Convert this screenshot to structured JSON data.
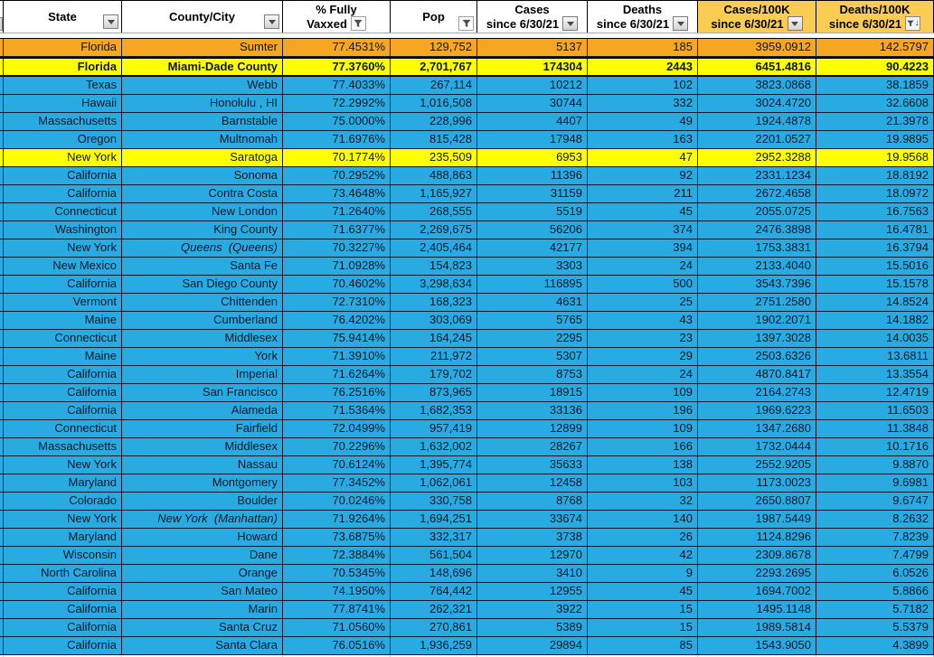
{
  "colors": {
    "row_blue": "#29ABE2",
    "row_orange": "#F6A623",
    "row_yellow": "#FFFF00",
    "header_gold_bg": "#FBCC52",
    "gridline": "#111B33",
    "header_bg": "#FFFFFF"
  },
  "header": {
    "columns": [
      {
        "name": "state",
        "lines": [
          "State"
        ],
        "icon": "dropdown",
        "bg": "white"
      },
      {
        "name": "county",
        "lines": [
          "County/City"
        ],
        "icon": "dropdown",
        "bg": "white"
      },
      {
        "name": "vaxxed",
        "lines": [
          "% Fully",
          "Vaxxed"
        ],
        "icon": "funnel",
        "bg": "white"
      },
      {
        "name": "pop",
        "lines": [
          "Pop"
        ],
        "icon": "funnel",
        "bg": "white"
      },
      {
        "name": "cases",
        "lines": [
          "Cases",
          "since 6/30/21"
        ],
        "icon": "dropdown",
        "bg": "white"
      },
      {
        "name": "deaths",
        "lines": [
          "Deaths",
          "since 6/30/21"
        ],
        "icon": "dropdown",
        "bg": "white"
      },
      {
        "name": "cases_100k",
        "lines": [
          "Cases/100K",
          "since 6/30/21"
        ],
        "icon": "dropdown",
        "bg": "gold"
      },
      {
        "name": "deaths_100k",
        "lines": [
          "Deaths/100K",
          "since 6/30/21"
        ],
        "icon": "funnel_sort_desc",
        "bg": "gold"
      }
    ]
  },
  "rows": [
    {
      "state": "Florida",
      "county": "Sumter",
      "vaxxed": "77.4531%",
      "pop": "129,752",
      "cases": "5137",
      "deaths": "185",
      "cases_100k": "3959.0912",
      "deaths_100k": "142.5797",
      "highlight": "orange"
    },
    {
      "state": "Florida",
      "county": "Miami-Dade County",
      "vaxxed": "77.3760%",
      "pop": "2,701,767",
      "cases": "174304",
      "deaths": "2443",
      "cases_100k": "6451.4816",
      "deaths_100k": "90.4223",
      "highlight": "yellow",
      "bold": true,
      "thick_border": true
    },
    {
      "state": "Texas",
      "county": "Webb",
      "vaxxed": "77.4033%",
      "pop": "267,114",
      "cases": "10212",
      "deaths": "102",
      "cases_100k": "3823.0868",
      "deaths_100k": "38.1859",
      "highlight": "blue"
    },
    {
      "state": "Hawaii",
      "county": "Honolulu , HI",
      "vaxxed": "72.2992%",
      "pop": "1,016,508",
      "cases": "30744",
      "deaths": "332",
      "cases_100k": "3024.4720",
      "deaths_100k": "32.6608",
      "highlight": "blue"
    },
    {
      "state": "Massachusetts",
      "county": "Barnstable",
      "vaxxed": "75.0000%",
      "pop": "228,996",
      "cases": "4407",
      "deaths": "49",
      "cases_100k": "1924.4878",
      "deaths_100k": "21.3978",
      "highlight": "blue"
    },
    {
      "state": "Oregon",
      "county": "Multnomah",
      "vaxxed": "71.6976%",
      "pop": "815,428",
      "cases": "17948",
      "deaths": "163",
      "cases_100k": "2201.0527",
      "deaths_100k": "19.9895",
      "highlight": "blue"
    },
    {
      "state": "New York",
      "county": "Saratoga",
      "vaxxed": "70.1774%",
      "pop": "235,509",
      "cases": "6953",
      "deaths": "47",
      "cases_100k": "2952.3288",
      "deaths_100k": "19.9568",
      "highlight": "yellow"
    },
    {
      "state": "California",
      "county": "Sonoma",
      "vaxxed": "70.2952%",
      "pop": "488,863",
      "cases": "11396",
      "deaths": "92",
      "cases_100k": "2331.1234",
      "deaths_100k": "18.8192",
      "highlight": "blue"
    },
    {
      "state": "California",
      "county": "Contra Costa",
      "vaxxed": "73.4648%",
      "pop": "1,165,927",
      "cases": "31159",
      "deaths": "211",
      "cases_100k": "2672.4658",
      "deaths_100k": "18.0972",
      "highlight": "blue"
    },
    {
      "state": "Connecticut",
      "county": "New London",
      "vaxxed": "71.2640%",
      "pop": "268,555",
      "cases": "5519",
      "deaths": "45",
      "cases_100k": "2055.0725",
      "deaths_100k": "16.7563",
      "highlight": "blue"
    },
    {
      "state": "Washington",
      "county": "King County",
      "vaxxed": "71.6377%",
      "pop": "2,269,675",
      "cases": "56206",
      "deaths": "374",
      "cases_100k": "2476.3898",
      "deaths_100k": "16.4781",
      "highlight": "blue"
    },
    {
      "state": "New York",
      "county": "Queens  (Queens)",
      "vaxxed": "70.3227%",
      "pop": "2,405,464",
      "cases": "42177",
      "deaths": "394",
      "cases_100k": "1753.3831",
      "deaths_100k": "16.3794",
      "highlight": "blue",
      "county_italic": true
    },
    {
      "state": "New Mexico",
      "county": "Santa Fe",
      "vaxxed": "71.0928%",
      "pop": "154,823",
      "cases": "3303",
      "deaths": "24",
      "cases_100k": "2133.4040",
      "deaths_100k": "15.5016",
      "highlight": "blue"
    },
    {
      "state": "California",
      "county": "San Diego County",
      "vaxxed": "70.4602%",
      "pop": "3,298,634",
      "cases": "116895",
      "deaths": "500",
      "cases_100k": "3543.7396",
      "deaths_100k": "15.1578",
      "highlight": "blue"
    },
    {
      "state": "Vermont",
      "county": "Chittenden",
      "vaxxed": "72.7310%",
      "pop": "168,323",
      "cases": "4631",
      "deaths": "25",
      "cases_100k": "2751.2580",
      "deaths_100k": "14.8524",
      "highlight": "blue"
    },
    {
      "state": "Maine",
      "county": "Cumberland",
      "vaxxed": "76.4202%",
      "pop": "303,069",
      "cases": "5765",
      "deaths": "43",
      "cases_100k": "1902.2071",
      "deaths_100k": "14.1882",
      "highlight": "blue"
    },
    {
      "state": "Connecticut",
      "county": "Middlesex",
      "vaxxed": "75.9414%",
      "pop": "164,245",
      "cases": "2295",
      "deaths": "23",
      "cases_100k": "1397.3028",
      "deaths_100k": "14.0035",
      "highlight": "blue"
    },
    {
      "state": "Maine",
      "county": "York",
      "vaxxed": "71.3910%",
      "pop": "211,972",
      "cases": "5307",
      "deaths": "29",
      "cases_100k": "2503.6326",
      "deaths_100k": "13.6811",
      "highlight": "blue"
    },
    {
      "state": "California",
      "county": "Imperial",
      "vaxxed": "71.6264%",
      "pop": "179,702",
      "cases": "8753",
      "deaths": "24",
      "cases_100k": "4870.8417",
      "deaths_100k": "13.3554",
      "highlight": "blue"
    },
    {
      "state": "California",
      "county": "San Francisco",
      "vaxxed": "76.2516%",
      "pop": "873,965",
      "cases": "18915",
      "deaths": "109",
      "cases_100k": "2164.2743",
      "deaths_100k": "12.4719",
      "highlight": "blue"
    },
    {
      "state": "California",
      "county": "Alameda",
      "vaxxed": "71.5364%",
      "pop": "1,682,353",
      "cases": "33136",
      "deaths": "196",
      "cases_100k": "1969.6223",
      "deaths_100k": "11.6503",
      "highlight": "blue"
    },
    {
      "state": "Connecticut",
      "county": "Fairfield",
      "vaxxed": "72.0499%",
      "pop": "957,419",
      "cases": "12899",
      "deaths": "109",
      "cases_100k": "1347.2680",
      "deaths_100k": "11.3848",
      "highlight": "blue"
    },
    {
      "state": "Massachusetts",
      "county": "Middlesex",
      "vaxxed": "70.2296%",
      "pop": "1,632,002",
      "cases": "28267",
      "deaths": "166",
      "cases_100k": "1732.0444",
      "deaths_100k": "10.1716",
      "highlight": "blue"
    },
    {
      "state": "New York",
      "county": "Nassau",
      "vaxxed": "70.6124%",
      "pop": "1,395,774",
      "cases": "35633",
      "deaths": "138",
      "cases_100k": "2552.9205",
      "deaths_100k": "9.8870",
      "highlight": "blue"
    },
    {
      "state": "Maryland",
      "county": "Montgomery",
      "vaxxed": "77.3452%",
      "pop": "1,062,061",
      "cases": "12458",
      "deaths": "103",
      "cases_100k": "1173.0023",
      "deaths_100k": "9.6981",
      "highlight": "blue"
    },
    {
      "state": "Colorado",
      "county": "Boulder",
      "vaxxed": "70.0246%",
      "pop": "330,758",
      "cases": "8768",
      "deaths": "32",
      "cases_100k": "2650.8807",
      "deaths_100k": "9.6747",
      "highlight": "blue"
    },
    {
      "state": "New York",
      "county": "New York  (Manhattan)",
      "vaxxed": "71.9264%",
      "pop": "1,694,251",
      "cases": "33674",
      "deaths": "140",
      "cases_100k": "1987.5449",
      "deaths_100k": "8.2632",
      "highlight": "blue",
      "county_italic": true
    },
    {
      "state": "Maryland",
      "county": "Howard",
      "vaxxed": "73.6875%",
      "pop": "332,317",
      "cases": "3738",
      "deaths": "26",
      "cases_100k": "1124.8296",
      "deaths_100k": "7.8239",
      "highlight": "blue"
    },
    {
      "state": "Wisconsin",
      "county": "Dane",
      "vaxxed": "72.3884%",
      "pop": "561,504",
      "cases": "12970",
      "deaths": "42",
      "cases_100k": "2309.8678",
      "deaths_100k": "7.4799",
      "highlight": "blue"
    },
    {
      "state": "North Carolina",
      "county": "Orange",
      "vaxxed": "70.5345%",
      "pop": "148,696",
      "cases": "3410",
      "deaths": "9",
      "cases_100k": "2293.2695",
      "deaths_100k": "6.0526",
      "highlight": "blue"
    },
    {
      "state": "California",
      "county": "San Mateo",
      "vaxxed": "74.1950%",
      "pop": "764,442",
      "cases": "12955",
      "deaths": "45",
      "cases_100k": "1694.7002",
      "deaths_100k": "5.8866",
      "highlight": "blue"
    },
    {
      "state": "California",
      "county": "Marin",
      "vaxxed": "77.8741%",
      "pop": "262,321",
      "cases": "3922",
      "deaths": "15",
      "cases_100k": "1495.1148",
      "deaths_100k": "5.7182",
      "highlight": "blue"
    },
    {
      "state": "California",
      "county": "Santa Cruz",
      "vaxxed": "71.0560%",
      "pop": "270,861",
      "cases": "5389",
      "deaths": "15",
      "cases_100k": "1989.5814",
      "deaths_100k": "5.5379",
      "highlight": "blue"
    },
    {
      "state": "California",
      "county": "Santa Clara",
      "vaxxed": "76.0516%",
      "pop": "1,936,259",
      "cases": "29894",
      "deaths": "85",
      "cases_100k": "1543.9050",
      "deaths_100k": "4.3899",
      "highlight": "blue"
    }
  ]
}
